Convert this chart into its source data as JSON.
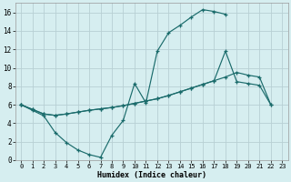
{
  "title": "",
  "xlabel": "Humidex (Indice chaleur)",
  "xlim": [
    -0.5,
    23.5
  ],
  "ylim": [
    0,
    17
  ],
  "ytick_values": [
    0,
    2,
    4,
    6,
    8,
    10,
    12,
    14,
    16
  ],
  "background_color": "#d6eef0",
  "grid_color": "#b8d0d4",
  "line_color": "#1a6b6b",
  "curve1_x": [
    0,
    1,
    2,
    3,
    4,
    5,
    6,
    7,
    8,
    9,
    10,
    11,
    12,
    13,
    14,
    15,
    16,
    17,
    18
  ],
  "curve1_y": [
    6.0,
    5.4,
    4.8,
    3.0,
    1.9,
    1.1,
    0.6,
    0.3,
    2.7,
    4.3,
    8.3,
    6.2,
    11.8,
    13.8,
    14.6,
    15.5,
    16.3,
    16.1,
    15.8
  ],
  "curve2_x": [
    0,
    1,
    2,
    3,
    4,
    5,
    6,
    7,
    8,
    9,
    10,
    11,
    12,
    13,
    14,
    15,
    16,
    17,
    18,
    19,
    20,
    21,
    22
  ],
  "curve2_y": [
    6.0,
    5.5,
    5.0,
    4.85,
    5.0,
    5.2,
    5.4,
    5.55,
    5.7,
    5.9,
    6.15,
    6.4,
    6.65,
    7.0,
    7.4,
    7.8,
    8.2,
    8.6,
    9.0,
    9.5,
    9.2,
    9.0,
    6.0
  ],
  "curve3_x": [
    0,
    1,
    2,
    3,
    4,
    5,
    6,
    7,
    8,
    9,
    10,
    11,
    12,
    13,
    14,
    15,
    16,
    17,
    18,
    19,
    20,
    21,
    22
  ],
  "curve3_y": [
    6.0,
    5.5,
    5.0,
    4.85,
    5.0,
    5.2,
    5.4,
    5.55,
    5.7,
    5.9,
    6.15,
    6.4,
    6.65,
    7.0,
    7.4,
    7.8,
    8.2,
    8.6,
    11.8,
    8.5,
    8.3,
    8.1,
    6.0
  ]
}
